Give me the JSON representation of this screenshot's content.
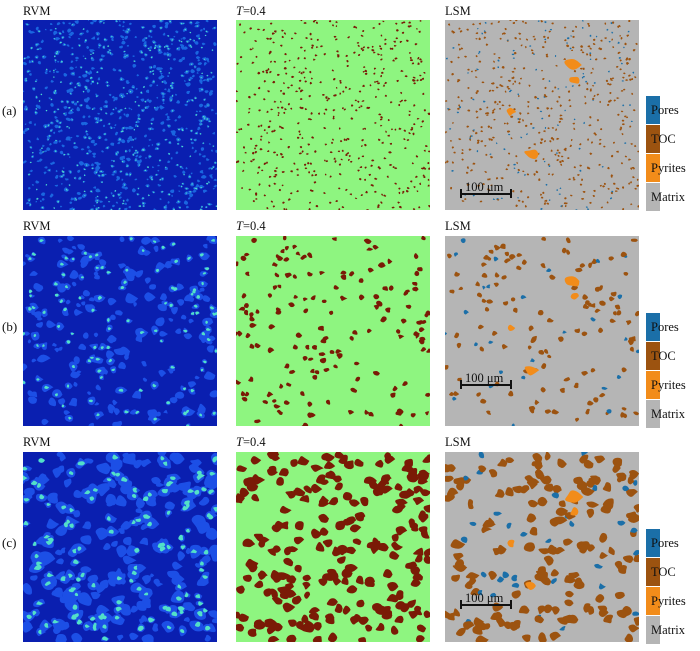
{
  "columns": {
    "rvm": "RVM",
    "threshold_prefix": "T",
    "threshold_suffix": "=0.4",
    "lsm": "LSM"
  },
  "rows": [
    {
      "label": "(a)",
      "density": "fine"
    },
    {
      "label": "(b)",
      "density": "medium"
    },
    {
      "label": "(c)",
      "density": "coarse"
    }
  ],
  "legend": [
    {
      "label": "Pores",
      "color": "#1b6fa8"
    },
    {
      "label": "TOC",
      "color": "#9c5310"
    },
    {
      "label": "Pyrites",
      "color": "#f28c1a"
    },
    {
      "label": "Matrix",
      "color": "#b5b5b5"
    }
  ],
  "scalebar": {
    "label": "100 μm"
  },
  "colors": {
    "rvm_background": "#0a1fb0",
    "rvm_highlight": "#52e0c8",
    "threshold_background": "#8ef580",
    "threshold_blob": "#7a1a06",
    "matrix": "#b5b5b5",
    "toc": "#9c5310",
    "pores": "#1b6fa8",
    "pyrites": "#f28c1a"
  }
}
